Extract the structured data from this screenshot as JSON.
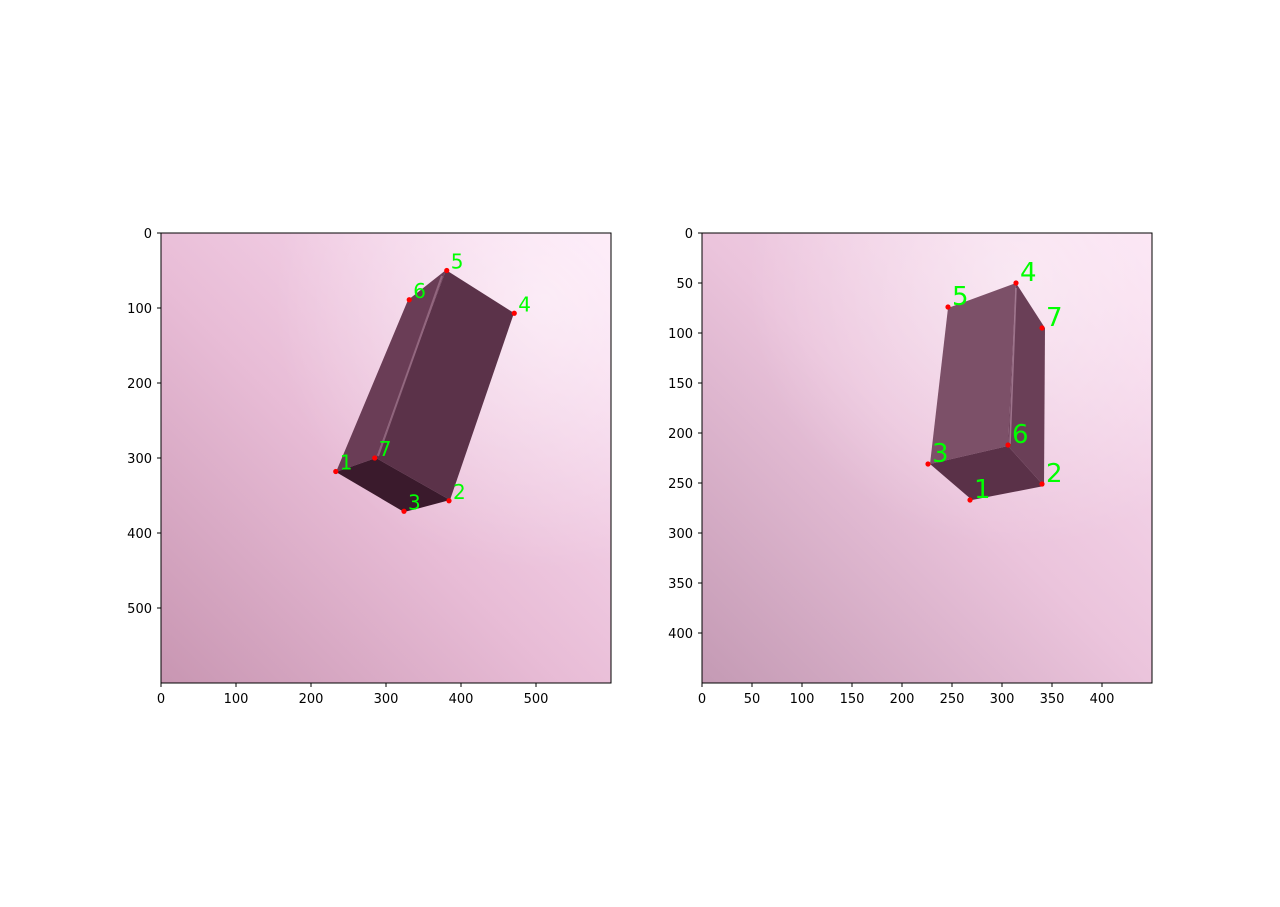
{
  "panels": [
    {
      "id": "left",
      "x_ticks": [
        "0",
        "100",
        "200",
        "300",
        "400",
        "500"
      ],
      "y_ticks": [
        "0",
        "100",
        "200",
        "300",
        "400",
        "500"
      ],
      "keypoints": [
        {
          "label": "1",
          "x": 233,
          "y": 318
        },
        {
          "label": "7",
          "x": 285,
          "y": 300
        },
        {
          "label": "3",
          "x": 324,
          "y": 371
        },
        {
          "label": "2",
          "x": 384,
          "y": 357
        },
        {
          "label": "4",
          "x": 471,
          "y": 107
        },
        {
          "label": "5",
          "x": 381,
          "y": 50
        },
        {
          "label": "6",
          "x": 331,
          "y": 89
        }
      ]
    },
    {
      "id": "right",
      "x_ticks": [
        "0",
        "50",
        "100",
        "150",
        "200",
        "250",
        "300",
        "350",
        "400"
      ],
      "y_ticks": [
        "0",
        "50",
        "100",
        "150",
        "200",
        "250",
        "300",
        "350",
        "400"
      ],
      "keypoints": [
        {
          "label": "3",
          "x": 226,
          "y": 231
        },
        {
          "label": "1",
          "x": 268,
          "y": 267
        },
        {
          "label": "2",
          "x": 340,
          "y": 251
        },
        {
          "label": "6",
          "x": 306,
          "y": 212
        },
        {
          "label": "4",
          "x": 314,
          "y": 50
        },
        {
          "label": "5",
          "x": 246,
          "y": 74
        },
        {
          "label": "7",
          "x": 340,
          "y": 95
        }
      ]
    }
  ],
  "colors": {
    "keypoint_marker": "#ff0000",
    "keypoint_label": "#00ff00",
    "box_top": "#5a3248",
    "box_side": "#6d4058",
    "box_bottom": "#3c1c2e",
    "background_light": "#fce0f3",
    "background_dark": "#c496b0"
  }
}
